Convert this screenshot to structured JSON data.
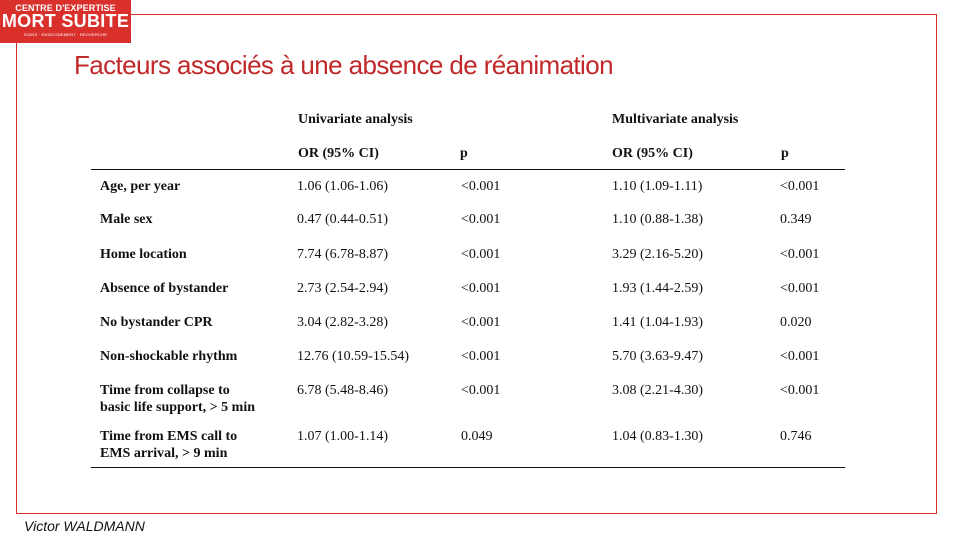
{
  "logo": {
    "line1": "CENTRE D'EXPERTISE",
    "line2": "MORT SUBITE",
    "line3": "SOINS · ENSEIGNEMENT · RECHERCHE"
  },
  "slide": {
    "title": "Facteurs associés à une absence de réanimation",
    "author": "Victor WALDMANN"
  },
  "table": {
    "group_headers": {
      "univariate": "Univariate analysis",
      "multivariate": "Multivariate analysis"
    },
    "col_headers": {
      "uni_or": "OR (95% CI)",
      "uni_p": "p",
      "multi_or": "OR (95% CI)",
      "multi_p": "p"
    },
    "rows": [
      {
        "label": "Age, per year",
        "label2": "",
        "uni_or": "1.06 (1.06-1.06)",
        "uni_p": "<0.001",
        "multi_or": "1.10 (1.09-1.11)",
        "multi_p": "<0.001"
      },
      {
        "label": "Male sex",
        "label2": "",
        "uni_or": "0.47 (0.44-0.51)",
        "uni_p": "<0.001",
        "multi_or": "1.10 (0.88-1.38)",
        "multi_p": "0.349"
      },
      {
        "label": "Home location",
        "label2": "",
        "uni_or": "7.74 (6.78-8.87)",
        "uni_p": "<0.001",
        "multi_or": "3.29 (2.16-5.20)",
        "multi_p": "<0.001"
      },
      {
        "label": "Absence of bystander",
        "label2": "",
        "uni_or": "2.73 (2.54-2.94)",
        "uni_p": "<0.001",
        "multi_or": "1.93 (1.44-2.59)",
        "multi_p": "<0.001"
      },
      {
        "label": "No bystander CPR",
        "label2": "",
        "uni_or": "3.04 (2.82-3.28)",
        "uni_p": "<0.001",
        "multi_or": "1.41 (1.04-1.93)",
        "multi_p": "0.020"
      },
      {
        "label": "Non-shockable rhythm",
        "label2": "",
        "uni_or": "12.76 (10.59-15.54)",
        "uni_p": "<0.001",
        "multi_or": "5.70 (3.63-9.47)",
        "multi_p": "<0.001"
      },
      {
        "label": "Time from collapse to",
        "label2": "basic life support, > 5 min",
        "uni_or": "6.78 (5.48-8.46)",
        "uni_p": "<0.001",
        "multi_or": "3.08 (2.21-4.30)",
        "multi_p": "<0.001"
      },
      {
        "label": "Time from EMS call to",
        "label2": "EMS arrival, > 9 min",
        "uni_or": "1.07 (1.00-1.14)",
        "uni_p": "0.049",
        "multi_or": "1.04 (0.83-1.30)",
        "multi_p": "0.746"
      }
    ]
  }
}
